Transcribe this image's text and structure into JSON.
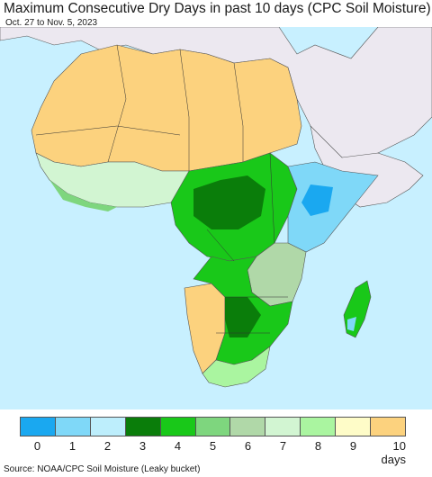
{
  "header": {
    "title": "Maximum Consecutive Dry Days in past 10 days (CPC Soil Moisture)",
    "date_range": "Oct. 27 to Nov. 5, 2023"
  },
  "map": {
    "ocean_color": "#c8f0ff",
    "other_land_color": "#ece8f0",
    "border_color": "#333333"
  },
  "legend": {
    "items": [
      {
        "label": "0",
        "color": "#1aa8f0"
      },
      {
        "label": "1",
        "color": "#7fd8f8"
      },
      {
        "label": "2",
        "color": "#bdeefc"
      },
      {
        "label": "3",
        "color": "#0a7d0a"
      },
      {
        "label": "4",
        "color": "#19c819"
      },
      {
        "label": "5",
        "color": "#7ed67e"
      },
      {
        "label": "6",
        "color": "#b0d8a8"
      },
      {
        "label": "7",
        "color": "#d2f5d2"
      },
      {
        "label": "8",
        "color": "#aaf5a0"
      },
      {
        "label": "9",
        "color": "#fefcc8"
      },
      {
        "label": "10 days",
        "color": "#fcd27e"
      }
    ]
  },
  "footer": {
    "source": "Source: NOAA/CPC Soil Moisture (Leaky bucket)"
  }
}
